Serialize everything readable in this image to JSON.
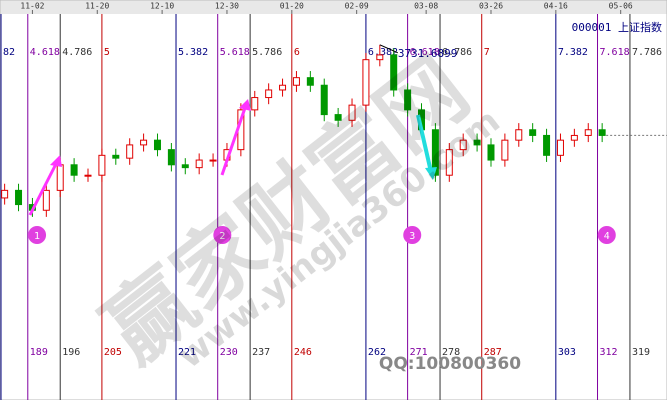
{
  "chart_data": {
    "type": "candlestick",
    "symbol": "000001 上证指数",
    "xlim": [
      183,
      327
    ],
    "ylim": [
      3420,
      3760
    ],
    "xticks": [
      {
        "value": 190,
        "label": "11-02"
      },
      {
        "value": 204,
        "label": "11-20"
      },
      {
        "value": 218,
        "label": "12-10"
      },
      {
        "value": 232,
        "label": "12-30"
      },
      {
        "value": 246,
        "label": "01-20"
      },
      {
        "value": 260,
        "label": "02-09"
      },
      {
        "value": 275,
        "label": "03-08"
      },
      {
        "value": 289,
        "label": "03-26"
      },
      {
        "value": 303,
        "label": "04-16"
      },
      {
        "value": 317,
        "label": "05-06"
      }
    ],
    "up_color": "#e00000",
    "down_color": "#009900",
    "x": [
      184,
      187,
      190,
      193,
      196,
      199,
      202,
      205,
      208,
      211,
      214,
      217,
      220,
      223,
      226,
      229,
      232,
      235,
      238,
      241,
      244,
      247,
      250,
      253,
      256,
      259,
      262,
      265,
      268,
      271,
      274,
      277,
      280,
      283,
      286,
      289,
      292,
      295,
      298,
      301,
      304,
      307,
      310,
      313
    ],
    "open": [
      3570,
      3578,
      3563,
      3557,
      3578,
      3605,
      3594,
      3594,
      3615,
      3612,
      3626,
      3631,
      3621,
      3605,
      3602,
      3610,
      3610,
      3621,
      3663,
      3676,
      3684,
      3689,
      3697,
      3689,
      3658,
      3652,
      3668,
      3716,
      3721,
      3684,
      3663,
      3642,
      3594,
      3621,
      3631,
      3626,
      3610,
      3631,
      3642,
      3636,
      3615,
      3631,
      3636,
      3642
    ],
    "close": [
      3578,
      3563,
      3557,
      3578,
      3605,
      3594,
      3594,
      3615,
      3612,
      3626,
      3631,
      3621,
      3605,
      3602,
      3610,
      3610,
      3621,
      3663,
      3676,
      3684,
      3689,
      3697,
      3689,
      3658,
      3652,
      3668,
      3716,
      3721,
      3684,
      3663,
      3642,
      3594,
      3621,
      3631,
      3626,
      3610,
      3631,
      3642,
      3636,
      3615,
      3631,
      3636,
      3642,
      3636
    ],
    "high": [
      3585,
      3585,
      3570,
      3585,
      3612,
      3612,
      3601,
      3622,
      3622,
      3633,
      3638,
      3638,
      3628,
      3612,
      3617,
      3617,
      3628,
      3670,
      3683,
      3691,
      3696,
      3704,
      3704,
      3696,
      3665,
      3675,
      3723,
      3731.6899,
      3728,
      3691,
      3670,
      3649,
      3628,
      3638,
      3638,
      3633,
      3638,
      3649,
      3649,
      3643,
      3638,
      3643,
      3649,
      3649
    ],
    "low": [
      3563,
      3556,
      3550,
      3550,
      3571,
      3587,
      3587,
      3587,
      3605,
      3605,
      3619,
      3614,
      3598,
      3595,
      3595,
      3603,
      3603,
      3614,
      3656,
      3669,
      3677,
      3682,
      3682,
      3651,
      3645,
      3645,
      3661,
      3709,
      3677,
      3656,
      3635,
      3587,
      3587,
      3614,
      3619,
      3603,
      3603,
      3624,
      3629,
      3608,
      3608,
      3624,
      3629,
      3629
    ],
    "peak_label": "3731.6899",
    "time_lines": [
      {
        "top": "82",
        "bottom": null,
        "color": "#000080"
      },
      {
        "top": "4.618",
        "bottom": 189,
        "color": "#8000a0"
      },
      {
        "top": "4.786",
        "bottom": 196,
        "color": "#333333"
      },
      {
        "top": "5",
        "bottom": 205,
        "color": "#c00000"
      },
      {
        "top": "5.382",
        "bottom": 221,
        "color": "#000080"
      },
      {
        "top": "5.618",
        "bottom": 230,
        "color": "#8000a0"
      },
      {
        "top": "5.786",
        "bottom": 237,
        "color": "#333333"
      },
      {
        "top": "6",
        "bottom": 246,
        "color": "#c00000"
      },
      {
        "top": "6.382",
        "bottom": 262,
        "color": "#000080"
      },
      {
        "top": "6.618",
        "bottom": 271,
        "color": "#8000a0"
      },
      {
        "top": "6.786",
        "bottom": 278,
        "color": "#333333"
      },
      {
        "top": "7",
        "bottom": 287,
        "color": "#c00000"
      },
      {
        "top": "7.382",
        "bottom": 303,
        "color": "#000080"
      },
      {
        "top": "7.618",
        "bottom": 312,
        "color": "#8000a0"
      },
      {
        "top": "7.786",
        "bottom": 319,
        "color": "#333333"
      }
    ],
    "markers": [
      "1",
      "2",
      "3",
      "4"
    ],
    "watermarks": [
      "赢家财富网",
      "www.yingjia360.com",
      "QQ:100800360"
    ]
  }
}
